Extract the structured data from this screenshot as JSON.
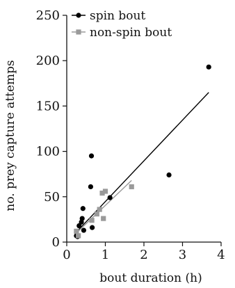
{
  "chart_data": {
    "type": "scatter",
    "title": "",
    "xlabel": "bout duration (h)",
    "ylabel": "no. prey capture attemps",
    "xlim": [
      0,
      4
    ],
    "ylim": [
      0,
      250
    ],
    "x_ticks": [
      "0",
      "1",
      "2",
      "3",
      "4"
    ],
    "y_ticks": [
      "0",
      "50",
      "100",
      "150",
      "200",
      "250"
    ],
    "grid": false,
    "legend_position": "top-left",
    "series": [
      {
        "name": "spin bout",
        "marker": "circle",
        "color": "#000000",
        "points": [
          [
            0.25,
            7
          ],
          [
            0.28,
            6
          ],
          [
            0.32,
            18
          ],
          [
            0.38,
            22
          ],
          [
            0.4,
            26
          ],
          [
            0.42,
            37
          ],
          [
            0.44,
            13
          ],
          [
            0.62,
            61
          ],
          [
            0.64,
            95
          ],
          [
            0.66,
            16
          ],
          [
            1.12,
            49
          ],
          [
            2.65,
            74
          ],
          [
            3.68,
            193
          ]
        ],
        "trendline": [
          [
            0.25,
            11
          ],
          [
            3.68,
            165
          ]
        ]
      },
      {
        "name": "non-spin bout",
        "marker": "square",
        "color": "#9a9a9a",
        "points": [
          [
            0.25,
            12
          ],
          [
            0.3,
            7
          ],
          [
            0.65,
            24
          ],
          [
            0.78,
            31
          ],
          [
            0.85,
            36
          ],
          [
            0.92,
            54
          ],
          [
            0.95,
            26
          ],
          [
            1.0,
            56
          ],
          [
            1.68,
            61
          ]
        ],
        "trendline": [
          [
            0.25,
            10
          ],
          [
            1.68,
            68
          ]
        ]
      }
    ]
  }
}
